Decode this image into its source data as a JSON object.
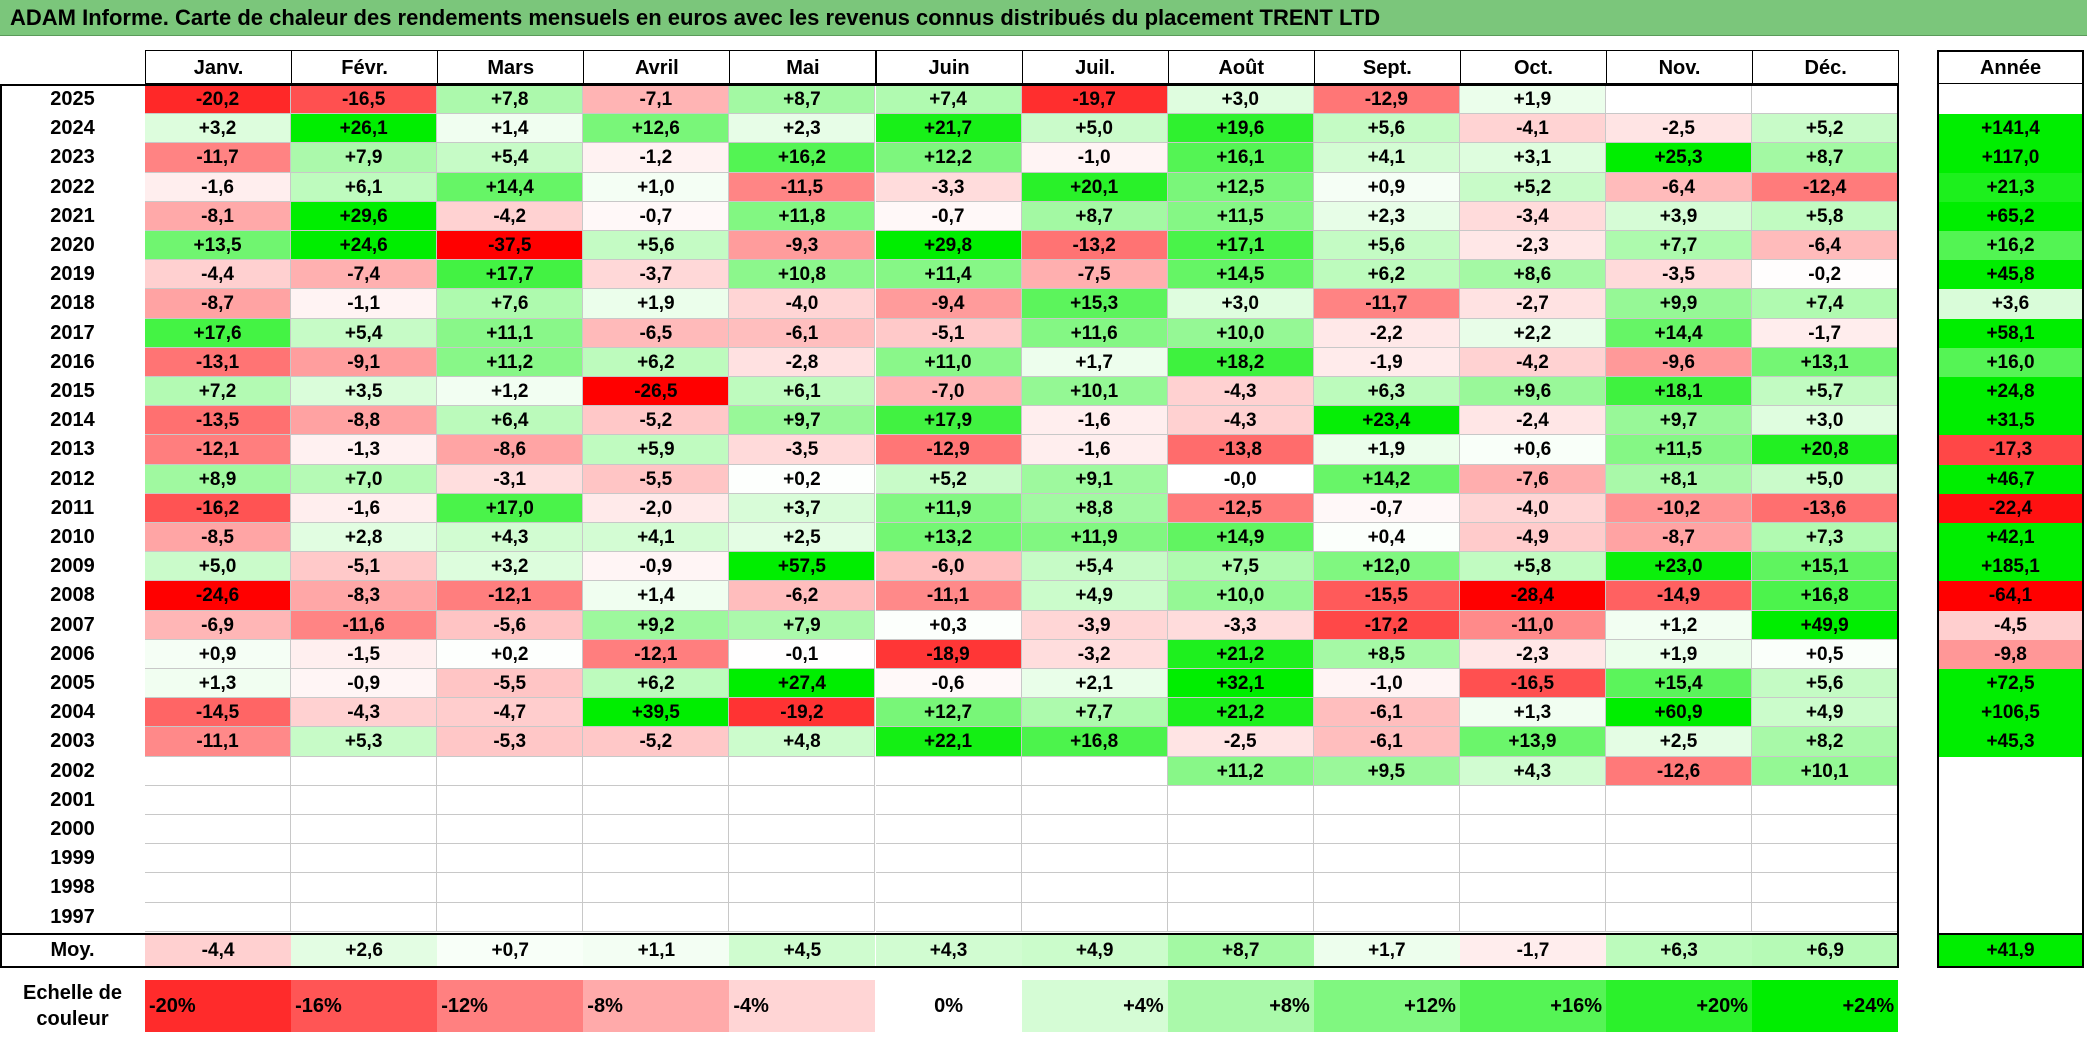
{
  "title": "ADAM Informe. Carte de chaleur des rendements mensuels en euros avec les revenus connus distribués du placement TRENT LTD",
  "chart_data": {
    "type": "heatmap",
    "title": "ADAM Informe. Carte de chaleur des rendements mensuels en euros avec les revenus connus distribués du placement TRENT LTD",
    "months": [
      "Janv.",
      "Févr.",
      "Mars",
      "Avril",
      "Mai",
      "Juin",
      "Juil.",
      "Août",
      "Sept.",
      "Oct.",
      "Nov.",
      "Déc."
    ],
    "annual_header": "Année",
    "rows": [
      {
        "year": "2025",
        "values": [
          "-20,2",
          "-16,5",
          "+7,8",
          "-7,1",
          "+8,7",
          "+7,4",
          "-19,7",
          "+3,0",
          "-12,9",
          "+1,9",
          "",
          ""
        ],
        "annual": ""
      },
      {
        "year": "2024",
        "values": [
          "+3,2",
          "+26,1",
          "+1,4",
          "+12,6",
          "+2,3",
          "+21,7",
          "+5,0",
          "+19,6",
          "+5,6",
          "-4,1",
          "-2,5",
          "+5,2"
        ],
        "annual": "+141,4"
      },
      {
        "year": "2023",
        "values": [
          "-11,7",
          "+7,9",
          "+5,4",
          "-1,2",
          "+16,2",
          "+12,2",
          "-1,0",
          "+16,1",
          "+4,1",
          "+3,1",
          "+25,3",
          "+8,7"
        ],
        "annual": "+117,0"
      },
      {
        "year": "2022",
        "values": [
          "-1,6",
          "+6,1",
          "+14,4",
          "+1,0",
          "-11,5",
          "-3,3",
          "+20,1",
          "+12,5",
          "+0,9",
          "+5,2",
          "-6,4",
          "-12,4"
        ],
        "annual": "+21,3"
      },
      {
        "year": "2021",
        "values": [
          "-8,1",
          "+29,6",
          "-4,2",
          "-0,7",
          "+11,8",
          "-0,7",
          "+8,7",
          "+11,5",
          "+2,3",
          "-3,4",
          "+3,9",
          "+5,8"
        ],
        "annual": "+65,2"
      },
      {
        "year": "2020",
        "values": [
          "+13,5",
          "+24,6",
          "-37,5",
          "+5,6",
          "-9,3",
          "+29,8",
          "-13,2",
          "+17,1",
          "+5,6",
          "-2,3",
          "+7,7",
          "-6,4"
        ],
        "annual": "+16,2"
      },
      {
        "year": "2019",
        "values": [
          "-4,4",
          "-7,4",
          "+17,7",
          "-3,7",
          "+10,8",
          "+11,4",
          "-7,5",
          "+14,5",
          "+6,2",
          "+8,6",
          "-3,5",
          "-0,2"
        ],
        "annual": "+45,8"
      },
      {
        "year": "2018",
        "values": [
          "-8,7",
          "-1,1",
          "+7,6",
          "+1,9",
          "-4,0",
          "-9,4",
          "+15,3",
          "+3,0",
          "-11,7",
          "-2,7",
          "+9,9",
          "+7,4"
        ],
        "annual": "+3,6"
      },
      {
        "year": "2017",
        "values": [
          "+17,6",
          "+5,4",
          "+11,1",
          "-6,5",
          "-6,1",
          "-5,1",
          "+11,6",
          "+10,0",
          "-2,2",
          "+2,2",
          "+14,4",
          "-1,7"
        ],
        "annual": "+58,1"
      },
      {
        "year": "2016",
        "values": [
          "-13,1",
          "-9,1",
          "+11,2",
          "+6,2",
          "-2,8",
          "+11,0",
          "+1,7",
          "+18,2",
          "-1,9",
          "-4,2",
          "-9,6",
          "+13,1"
        ],
        "annual": "+16,0"
      },
      {
        "year": "2015",
        "values": [
          "+7,2",
          "+3,5",
          "+1,2",
          "-26,5",
          "+6,1",
          "-7,0",
          "+10,1",
          "-4,3",
          "+6,3",
          "+9,6",
          "+18,1",
          "+5,7"
        ],
        "annual": "+24,8"
      },
      {
        "year": "2014",
        "values": [
          "-13,5",
          "-8,8",
          "+6,4",
          "-5,2",
          "+9,7",
          "+17,9",
          "-1,6",
          "-4,3",
          "+23,4",
          "-2,4",
          "+9,7",
          "+3,0"
        ],
        "annual": "+31,5"
      },
      {
        "year": "2013",
        "values": [
          "-12,1",
          "-1,3",
          "-8,6",
          "+5,9",
          "-3,5",
          "-12,9",
          "-1,6",
          "-13,8",
          "+1,9",
          "+0,6",
          "+11,5",
          "+20,8"
        ],
        "annual": "-17,3"
      },
      {
        "year": "2012",
        "values": [
          "+8,9",
          "+7,0",
          "-3,1",
          "-5,5",
          "+0,2",
          "+5,2",
          "+9,1",
          "-0,0",
          "+14,2",
          "-7,6",
          "+8,1",
          "+5,0"
        ],
        "annual": "+46,7"
      },
      {
        "year": "2011",
        "values": [
          "-16,2",
          "-1,6",
          "+17,0",
          "-2,0",
          "+3,7",
          "+11,9",
          "+8,8",
          "-12,5",
          "-0,7",
          "-4,0",
          "-10,2",
          "-13,6"
        ],
        "annual": "-22,4"
      },
      {
        "year": "2010",
        "values": [
          "-8,5",
          "+2,8",
          "+4,3",
          "+4,1",
          "+2,5",
          "+13,2",
          "+11,9",
          "+14,9",
          "+0,4",
          "-4,9",
          "-8,7",
          "+7,3"
        ],
        "annual": "+42,1"
      },
      {
        "year": "2009",
        "values": [
          "+5,0",
          "-5,1",
          "+3,2",
          "-0,9",
          "+57,5",
          "-6,0",
          "+5,4",
          "+7,5",
          "+12,0",
          "+5,8",
          "+23,0",
          "+15,1"
        ],
        "annual": "+185,1"
      },
      {
        "year": "2008",
        "values": [
          "-24,6",
          "-8,3",
          "-12,1",
          "+1,4",
          "-6,2",
          "-11,1",
          "+4,9",
          "+10,0",
          "-15,5",
          "-28,4",
          "-14,9",
          "+16,8"
        ],
        "annual": "-64,1"
      },
      {
        "year": "2007",
        "values": [
          "-6,9",
          "-11,6",
          "-5,6",
          "+9,2",
          "+7,9",
          "+0,3",
          "-3,9",
          "-3,3",
          "-17,2",
          "-11,0",
          "+1,2",
          "+49,9"
        ],
        "annual": "-4,5"
      },
      {
        "year": "2006",
        "values": [
          "+0,9",
          "-1,5",
          "+0,2",
          "-12,1",
          "-0,1",
          "-18,9",
          "-3,2",
          "+21,2",
          "+8,5",
          "-2,3",
          "+1,9",
          "+0,5"
        ],
        "annual": "-9,8"
      },
      {
        "year": "2005",
        "values": [
          "+1,3",
          "-0,9",
          "-5,5",
          "+6,2",
          "+27,4",
          "-0,6",
          "+2,1",
          "+32,1",
          "-1,0",
          "-16,5",
          "+15,4",
          "+5,6"
        ],
        "annual": "+72,5"
      },
      {
        "year": "2004",
        "values": [
          "-14,5",
          "-4,3",
          "-4,7",
          "+39,5",
          "-19,2",
          "+12,7",
          "+7,7",
          "+21,2",
          "-6,1",
          "+1,3",
          "+60,9",
          "+4,9"
        ],
        "annual": "+106,5"
      },
      {
        "year": "2003",
        "values": [
          "-11,1",
          "+5,3",
          "-5,3",
          "-5,2",
          "+4,8",
          "+22,1",
          "+16,8",
          "-2,5",
          "-6,1",
          "+13,9",
          "+2,5",
          "+8,2"
        ],
        "annual": "+45,3"
      },
      {
        "year": "2002",
        "values": [
          "",
          "",
          "",
          "",
          "",
          "",
          "",
          "+11,2",
          "+9,5",
          "+4,3",
          "-12,6",
          "+10,1"
        ],
        "annual": ""
      },
      {
        "year": "2001",
        "values": [
          "",
          "",
          "",
          "",
          "",
          "",
          "",
          "",
          "",
          "",
          "",
          ""
        ],
        "annual": ""
      },
      {
        "year": "2000",
        "values": [
          "",
          "",
          "",
          "",
          "",
          "",
          "",
          "",
          "",
          "",
          "",
          ""
        ],
        "annual": ""
      },
      {
        "year": "1999",
        "values": [
          "",
          "",
          "",
          "",
          "",
          "",
          "",
          "",
          "",
          "",
          "",
          ""
        ],
        "annual": ""
      },
      {
        "year": "1998",
        "values": [
          "",
          "",
          "",
          "",
          "",
          "",
          "",
          "",
          "",
          "",
          "",
          ""
        ],
        "annual": ""
      },
      {
        "year": "1997",
        "values": [
          "",
          "",
          "",
          "",
          "",
          "",
          "",
          "",
          "",
          "",
          "",
          ""
        ],
        "annual": ""
      }
    ],
    "average": {
      "label": "Moy.",
      "values": [
        "-4,4",
        "+2,6",
        "+0,7",
        "+1,1",
        "+4,5",
        "+4,3",
        "+4,9",
        "+8,7",
        "+1,7",
        "-1,7",
        "+6,3",
        "+6,9"
      ],
      "annual": "+41,9"
    },
    "color_scale": {
      "label_line1": "Echelle de",
      "label_line2": "couleur",
      "stops": [
        {
          "label": "-20%",
          "value": -20
        },
        {
          "label": "-16%",
          "value": -16
        },
        {
          "label": "-12%",
          "value": -12
        },
        {
          "label": "-8%",
          "value": -8
        },
        {
          "label": "-4%",
          "value": -4
        },
        {
          "label": "0%",
          "value": 0
        },
        {
          "label": "+4%",
          "value": 4
        },
        {
          "label": "+8%",
          "value": 8
        },
        {
          "label": "+12%",
          "value": 12
        },
        {
          "label": "+16%",
          "value": 16
        },
        {
          "label": "+20%",
          "value": 20
        },
        {
          "label": "+24%",
          "value": 24
        }
      ],
      "negative_color": "#ff0000",
      "zero_color": "#ffffff",
      "positive_color": "#00ee00"
    }
  }
}
